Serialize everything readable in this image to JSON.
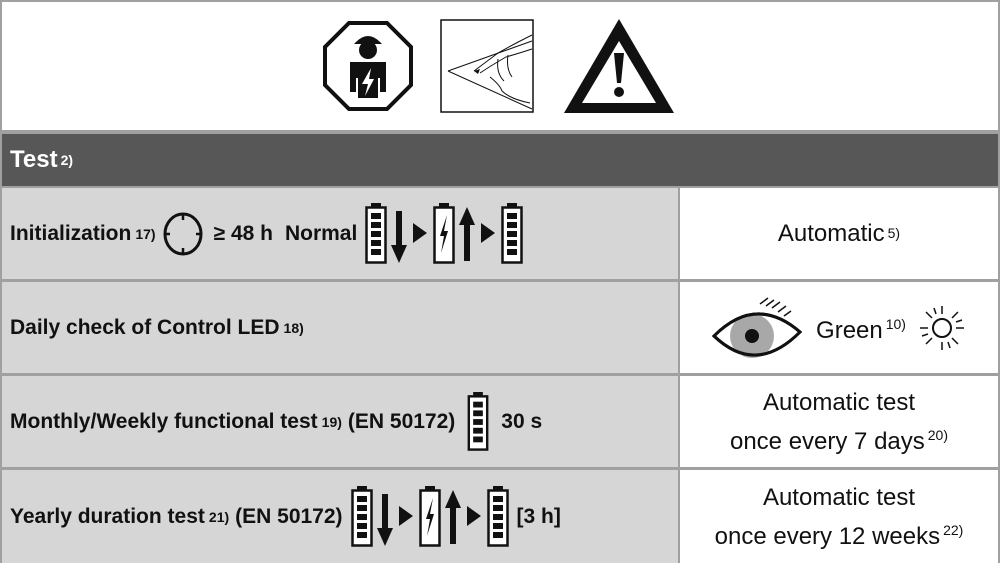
{
  "header": {
    "title": "Test",
    "note": "2)"
  },
  "icons": [
    "qualified-electrician-icon",
    "read-instructions-icon",
    "warning-icon"
  ],
  "rows": [
    {
      "label": "Initialization",
      "note": "17)",
      "duration": "≥ 48 h",
      "mode": "Normal",
      "result": "Automatic",
      "result_note": "5)"
    },
    {
      "label": "Daily check of Control LED",
      "note": "18)",
      "result": "Green",
      "result_note": "10)"
    },
    {
      "label": "Monthly/Weekly functional test",
      "note": "19)",
      "standard": "(EN 50172)",
      "duration": "30 s",
      "result_line1": "Automatic test",
      "result_line2": "once every 7 days",
      "result_note": "20)"
    },
    {
      "label": "Yearly duration test",
      "note": "21)",
      "standard": "(EN 50172)",
      "duration": "[3 h]",
      "result_line1": "Automatic test",
      "result_line2": "once every 12 weeks",
      "result_note": "22)"
    }
  ],
  "colors": {
    "header_bg": "#575757",
    "left_cell": "#d6d6d6",
    "eye_iris": "#a8a8a8"
  }
}
